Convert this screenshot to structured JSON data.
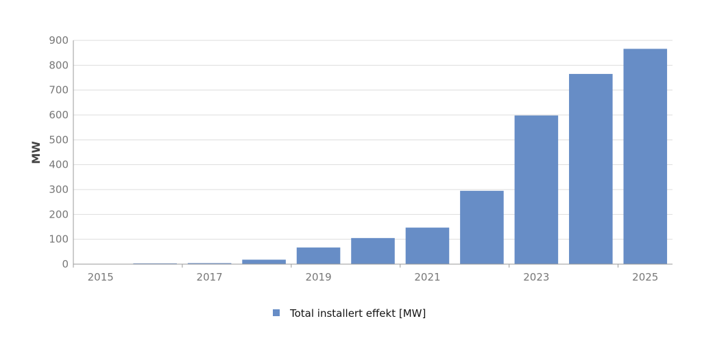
{
  "chart_data": {
    "type": "bar",
    "title": "",
    "xlabel": "",
    "ylabel": "MW",
    "ylim": [
      0,
      900
    ],
    "yticks": [
      0,
      100,
      200,
      300,
      400,
      500,
      600,
      700,
      800,
      900
    ],
    "xtick_labels": [
      "2015",
      "2017",
      "2019",
      "2021",
      "2023",
      "2025"
    ],
    "categories": [
      2015,
      2016,
      2017,
      2018,
      2019,
      2020,
      2021,
      2022,
      2023,
      2024,
      2025
    ],
    "series": [
      {
        "name": "Total installert effekt [MW]",
        "color": "#678dc6",
        "values": [
          1,
          3,
          4,
          18,
          67,
          105,
          147,
          295,
          598,
          765,
          866
        ]
      }
    ],
    "grid": true,
    "legend_position": "bottom-center"
  }
}
